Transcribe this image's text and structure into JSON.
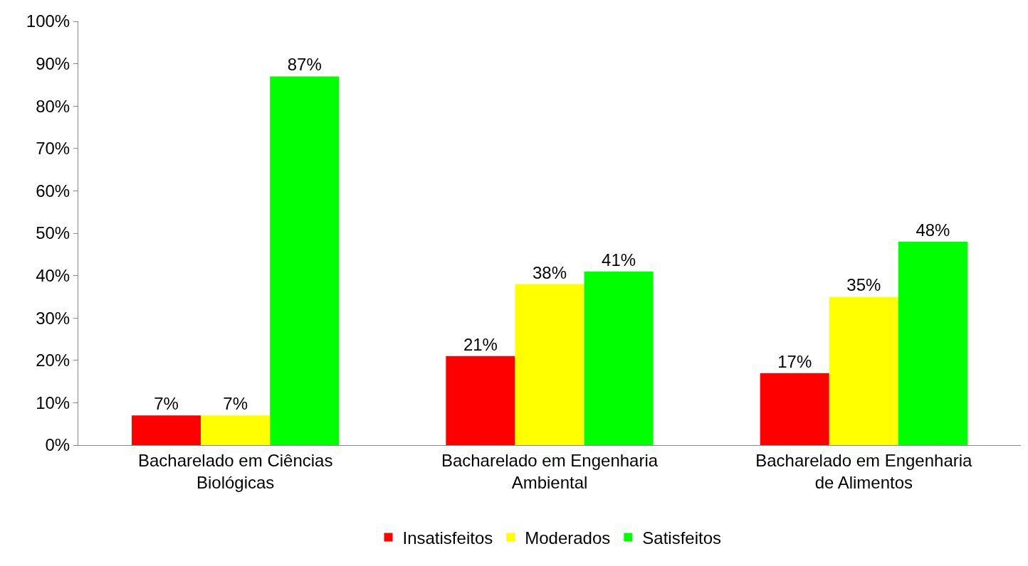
{
  "chart_data": {
    "type": "bar",
    "categories": [
      "Bacharelado em Ciências Biológicas",
      "Bacharelado em Engenharia Ambiental",
      "Bacharelado em Engenharia de Alimentos"
    ],
    "series": [
      {
        "name": "Insatisfeitos",
        "color": "#ff0000",
        "values": [
          7,
          21,
          17
        ],
        "value_labels": [
          "7%",
          "21%",
          "17%"
        ]
      },
      {
        "name": "Moderados",
        "color": "#ffff00",
        "values": [
          7,
          38,
          35
        ],
        "value_labels": [
          "7%",
          "38%",
          "35%"
        ]
      },
      {
        "name": "Satisfeitos",
        "color": "#00ff00",
        "values": [
          87,
          41,
          48
        ],
        "value_labels": [
          "87%",
          "41%",
          "48%"
        ]
      }
    ],
    "ylim": [
      0,
      100
    ],
    "yticks": [
      {
        "value": 0,
        "label": "0%"
      },
      {
        "value": 10,
        "label": "10%"
      },
      {
        "value": 20,
        "label": "20%"
      },
      {
        "value": 30,
        "label": "30%"
      },
      {
        "value": 40,
        "label": "40%"
      },
      {
        "value": 50,
        "label": "50%"
      },
      {
        "value": 60,
        "label": "60%"
      },
      {
        "value": 70,
        "label": "70%"
      },
      {
        "value": 80,
        "label": "80%"
      },
      {
        "value": 90,
        "label": "90%"
      },
      {
        "value": 100,
        "label": "100%"
      }
    ],
    "grid": false,
    "legend": "bottom"
  }
}
